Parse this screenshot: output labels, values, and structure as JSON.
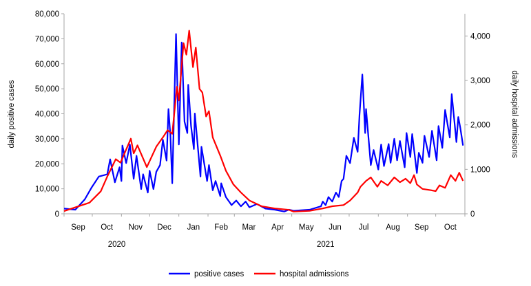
{
  "chart_data": {
    "type": "line",
    "title": "",
    "xlabel": "",
    "x_unit": "days since 1 Sep 2020",
    "xlim": [
      0,
      426
    ],
    "ylabel": "daily positive cases",
    "ylim": [
      0,
      80000
    ],
    "yticks": [
      0,
      10000,
      20000,
      30000,
      40000,
      50000,
      60000,
      70000,
      80000
    ],
    "ytick_labels": [
      "0",
      "10,000",
      "20,000",
      "30,000",
      "40,000",
      "50,000",
      "60,000",
      "70,000",
      "80,000"
    ],
    "y2label": "daily hospital admissions",
    "y2lim": [
      0,
      4500
    ],
    "y2ticks": [
      0,
      1000,
      2000,
      3000,
      4000
    ],
    "y2tick_labels": [
      "0",
      "1,000",
      "2,000",
      "3,000",
      "4,000"
    ],
    "month_ticks": [
      0,
      30,
      61,
      91,
      122,
      153,
      181,
      212,
      242,
      273,
      303,
      334,
      365,
      395,
      426
    ],
    "month_labels": [
      "Sep",
      "Oct",
      "Nov",
      "Dec",
      "Jan",
      "Feb",
      "Mar",
      "Apr",
      "May",
      "Jun",
      "Jul",
      "Aug",
      "Sep",
      "Oct"
    ],
    "year_labels": [
      {
        "label": "2020",
        "day": 56
      },
      {
        "label": "2021",
        "day": 278
      }
    ],
    "grid": false,
    "legend_position": "bottom",
    "series": [
      {
        "name": "positive cases",
        "axis": "left",
        "color": "#0000ff",
        "points": [
          [
            0,
            2100
          ],
          [
            12,
            1650
          ],
          [
            22,
            5770
          ],
          [
            29,
            10350
          ],
          [
            37,
            14900
          ],
          [
            46,
            15800
          ],
          [
            49,
            21800
          ],
          [
            54,
            12600
          ],
          [
            59,
            18600
          ],
          [
            61,
            13100
          ],
          [
            62,
            27300
          ],
          [
            66,
            20300
          ],
          [
            70,
            27700
          ],
          [
            74,
            14000
          ],
          [
            77,
            23200
          ],
          [
            82,
            9900
          ],
          [
            84,
            15800
          ],
          [
            89,
            8500
          ],
          [
            91,
            17200
          ],
          [
            95,
            9900
          ],
          [
            98,
            16800
          ],
          [
            102,
            19500
          ],
          [
            105,
            29600
          ],
          [
            109,
            21300
          ],
          [
            111,
            41900
          ],
          [
            113,
            31400
          ],
          [
            115,
            12200
          ],
          [
            119,
            71900
          ],
          [
            122,
            27700
          ],
          [
            125,
            68500
          ],
          [
            128,
            36900
          ],
          [
            131,
            32300
          ],
          [
            132,
            51600
          ],
          [
            135,
            35100
          ],
          [
            138,
            25900
          ],
          [
            139,
            40100
          ],
          [
            145,
            14900
          ],
          [
            146,
            26800
          ],
          [
            152,
            13100
          ],
          [
            154,
            19500
          ],
          [
            158,
            9400
          ],
          [
            161,
            13100
          ],
          [
            166,
            7100
          ],
          [
            167,
            12200
          ],
          [
            172,
            6700
          ],
          [
            178,
            3500
          ],
          [
            183,
            5300
          ],
          [
            188,
            3000
          ],
          [
            193,
            4900
          ],
          [
            197,
            2600
          ],
          [
            205,
            3900
          ],
          [
            214,
            2100
          ],
          [
            224,
            1650
          ],
          [
            234,
            900
          ],
          [
            239,
            1650
          ],
          [
            244,
            1200
          ],
          [
            261,
            1650
          ],
          [
            273,
            3000
          ],
          [
            275,
            4900
          ],
          [
            278,
            3500
          ],
          [
            281,
            6700
          ],
          [
            285,
            4900
          ],
          [
            289,
            8500
          ],
          [
            292,
            6700
          ],
          [
            295,
            13100
          ],
          [
            297,
            14000
          ],
          [
            300,
            23200
          ],
          [
            304,
            20300
          ],
          [
            308,
            30400
          ],
          [
            312,
            24800
          ],
          [
            314,
            39600
          ],
          [
            317,
            55700
          ],
          [
            320,
            32300
          ],
          [
            321,
            41900
          ],
          [
            326,
            19500
          ],
          [
            329,
            25500
          ],
          [
            334,
            17700
          ],
          [
            337,
            27700
          ],
          [
            340,
            19100
          ],
          [
            345,
            27900
          ],
          [
            347,
            20400
          ],
          [
            351,
            30000
          ],
          [
            354,
            21400
          ],
          [
            357,
            29100
          ],
          [
            362,
            18600
          ],
          [
            364,
            32300
          ],
          [
            368,
            22700
          ],
          [
            370,
            31900
          ],
          [
            375,
            16300
          ],
          [
            377,
            24400
          ],
          [
            381,
            20400
          ],
          [
            383,
            31200
          ],
          [
            388,
            22700
          ],
          [
            391,
            33200
          ],
          [
            396,
            21400
          ],
          [
            398,
            35100
          ],
          [
            402,
            26400
          ],
          [
            405,
            41500
          ],
          [
            410,
            30500
          ],
          [
            412,
            47900
          ],
          [
            417,
            28700
          ],
          [
            419,
            38700
          ],
          [
            421,
            34600
          ],
          [
            424,
            27300
          ]
        ]
      },
      {
        "name": "hospital admissions",
        "axis": "right",
        "color": "#ff0000",
        "points": [
          [
            0,
            60
          ],
          [
            12,
            145
          ],
          [
            27,
            250
          ],
          [
            39,
            505
          ],
          [
            46,
            840
          ],
          [
            55,
            1230
          ],
          [
            60,
            1150
          ],
          [
            71,
            1690
          ],
          [
            74,
            1360
          ],
          [
            78,
            1540
          ],
          [
            88,
            1050
          ],
          [
            98,
            1510
          ],
          [
            105,
            1720
          ],
          [
            110,
            1880
          ],
          [
            115,
            1800
          ],
          [
            120,
            2860
          ],
          [
            122,
            2550
          ],
          [
            127,
            3840
          ],
          [
            130,
            3580
          ],
          [
            133,
            4120
          ],
          [
            137,
            3300
          ],
          [
            140,
            3740
          ],
          [
            144,
            2810
          ],
          [
            147,
            2730
          ],
          [
            151,
            2190
          ],
          [
            154,
            2310
          ],
          [
            158,
            1720
          ],
          [
            166,
            1310
          ],
          [
            172,
            970
          ],
          [
            180,
            660
          ],
          [
            188,
            480
          ],
          [
            197,
            300
          ],
          [
            210,
            170
          ],
          [
            224,
            120
          ],
          [
            239,
            90
          ],
          [
            244,
            50
          ],
          [
            261,
            67
          ],
          [
            275,
            120
          ],
          [
            285,
            170
          ],
          [
            297,
            197
          ],
          [
            304,
            300
          ],
          [
            312,
            480
          ],
          [
            315,
            610
          ],
          [
            321,
            740
          ],
          [
            326,
            820
          ],
          [
            333,
            610
          ],
          [
            337,
            740
          ],
          [
            344,
            640
          ],
          [
            351,
            820
          ],
          [
            357,
            710
          ],
          [
            363,
            790
          ],
          [
            368,
            690
          ],
          [
            372,
            870
          ],
          [
            375,
            660
          ],
          [
            381,
            560
          ],
          [
            390,
            530
          ],
          [
            395,
            510
          ],
          [
            399,
            640
          ],
          [
            405,
            585
          ],
          [
            411,
            870
          ],
          [
            416,
            740
          ],
          [
            420,
            925
          ],
          [
            424,
            740
          ]
        ]
      }
    ]
  },
  "legend": {
    "items": [
      {
        "label": "positive cases",
        "color": "#0000ff"
      },
      {
        "label": "hospital admissions",
        "color": "#ff0000"
      }
    ]
  }
}
